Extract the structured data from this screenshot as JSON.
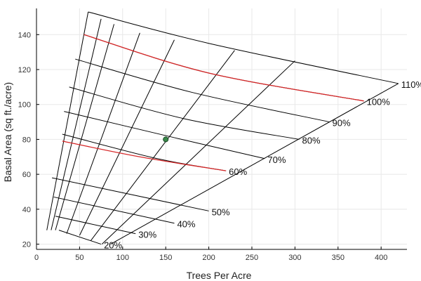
{
  "chart_data": {
    "type": "line",
    "title": "",
    "xlabel": "Trees Per Acre",
    "ylabel": "Basal Area (sq ft./acre)",
    "xlim": [
      0,
      430
    ],
    "ylim": [
      17,
      155
    ],
    "x_ticks": [
      "0",
      "50",
      "100",
      "150",
      "200",
      "250",
      "300",
      "350",
      "400"
    ],
    "y_ticks": [
      "20",
      "40",
      "60",
      "80",
      "100",
      "120",
      "140"
    ],
    "grid": true,
    "colors": {
      "grid": "#e8e8e8",
      "curve": "#000000",
      "highlight": "#d62728",
      "point": "#3a8a4a",
      "axis": "#000000"
    },
    "stocking_curves": [
      {
        "label": "20%",
        "points": [
          [
            26,
            28
          ],
          [
            75,
            20
          ]
        ]
      },
      {
        "label": "30%",
        "points": [
          [
            22,
            36
          ],
          [
            115,
            26
          ]
        ]
      },
      {
        "label": "40%",
        "points": [
          [
            20,
            47
          ],
          [
            160,
            32
          ]
        ]
      },
      {
        "label": "50%",
        "points": [
          [
            18,
            58
          ],
          [
            200,
            39
          ]
        ]
      },
      {
        "label": "60%",
        "points": [
          [
            30,
            83
          ],
          [
            140,
            69
          ],
          [
            220,
            62
          ]
        ]
      },
      {
        "label": "70%",
        "points": [
          [
            32,
            96
          ],
          [
            160,
            81
          ],
          [
            265,
            69
          ]
        ]
      },
      {
        "label": "80%",
        "points": [
          [
            38,
            110
          ],
          [
            170,
            92
          ],
          [
            305,
            80
          ]
        ]
      },
      {
        "label": "90%",
        "points": [
          [
            45,
            126
          ],
          [
            180,
            107
          ],
          [
            340,
            90
          ]
        ]
      },
      {
        "label": "100%",
        "points": [
          [
            55,
            140
          ],
          [
            200,
            118
          ],
          [
            380,
            102
          ]
        ]
      },
      {
        "label": "110%",
        "points": [
          [
            60,
            153
          ],
          [
            200,
            135
          ],
          [
            420,
            112
          ]
        ]
      }
    ],
    "size_lines": [
      {
        "points": [
          [
            60,
            153
          ],
          [
            12,
            28
          ]
        ]
      },
      {
        "points": [
          [
            75,
            149
          ],
          [
            17,
            28
          ]
        ]
      },
      {
        "points": [
          [
            90,
            146
          ],
          [
            22,
            28
          ]
        ]
      },
      {
        "points": [
          [
            120,
            141
          ],
          [
            35,
            26
          ]
        ]
      },
      {
        "points": [
          [
            160,
            137
          ],
          [
            50,
            25
          ]
        ]
      },
      {
        "points": [
          [
            230,
            131
          ],
          [
            63,
            22
          ]
        ]
      },
      {
        "points": [
          [
            300,
            125
          ],
          [
            76,
            20
          ]
        ]
      },
      {
        "points": [
          [
            420,
            112
          ],
          [
            86,
            20
          ]
        ]
      }
    ],
    "highlight_curves": [
      {
        "points": [
          [
            55,
            140
          ],
          [
            200,
            118
          ],
          [
            380,
            102
          ]
        ]
      },
      {
        "points": [
          [
            30,
            79
          ],
          [
            120,
            70
          ],
          [
            220,
            62
          ]
        ]
      }
    ],
    "marker": {
      "x": 150,
      "y": 80
    }
  }
}
